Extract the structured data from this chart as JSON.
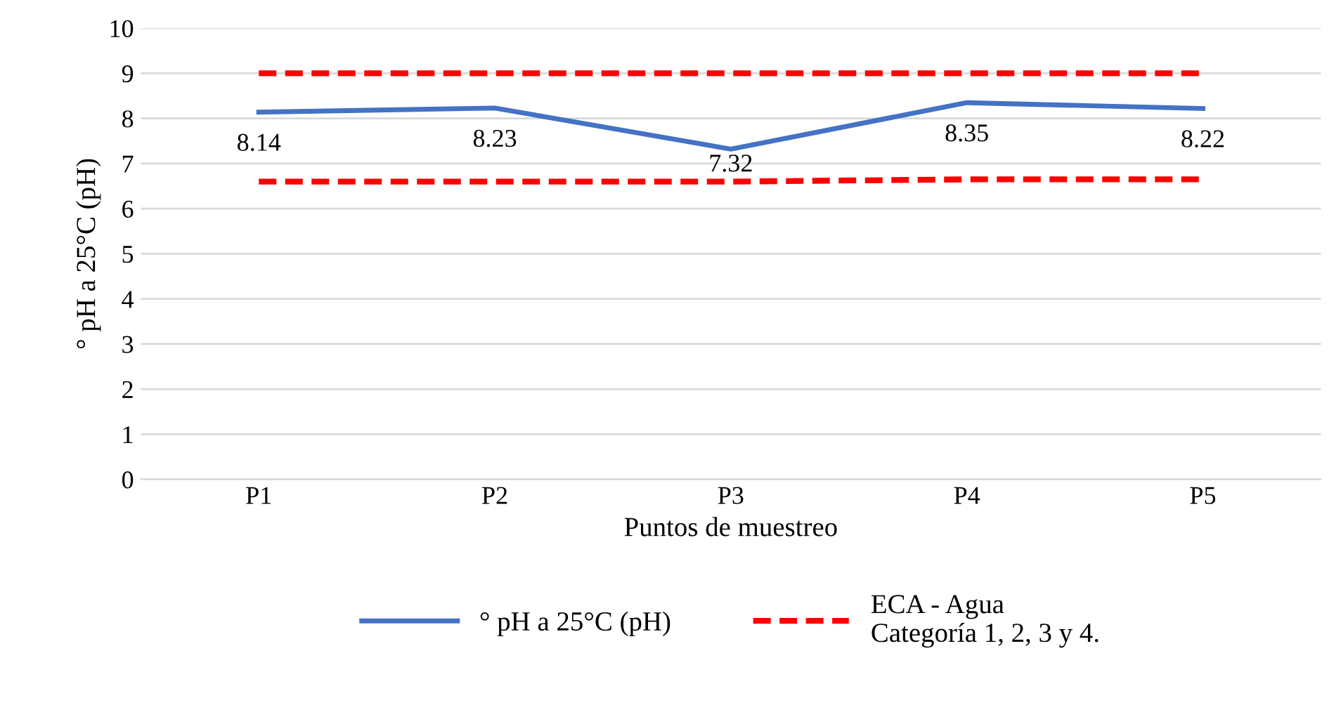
{
  "chart_data": {
    "type": "line",
    "xlabel": "Puntos de muestreo",
    "ylabel": "° pH a 25°C (pH)",
    "categories": [
      "P1",
      "P2",
      "P3",
      "P4",
      "P5"
    ],
    "series": [
      {
        "name": "° pH a 25°C (pH)",
        "color": "#4472c4",
        "values": [
          8.14,
          8.23,
          7.32,
          8.35,
          8.22
        ],
        "line_style": "solid",
        "data_labels": true
      },
      {
        "name": "ECA - Agua\nCategoría 1, 2, 3 y 4.",
        "color": "#ff0000",
        "values": [
          9,
          9,
          9,
          9,
          9
        ],
        "line_style": "dashed"
      },
      {
        "color": "#ff0000",
        "values": [
          6.6,
          6.6,
          6.6,
          6.65,
          6.65
        ],
        "line_style": "dashed"
      }
    ],
    "ylim": [
      0,
      10
    ],
    "yticks": [
      0,
      1,
      2,
      3,
      4,
      5,
      6,
      7,
      8,
      9,
      10
    ],
    "grid": "y",
    "legend": "bottom",
    "marker": "none"
  }
}
